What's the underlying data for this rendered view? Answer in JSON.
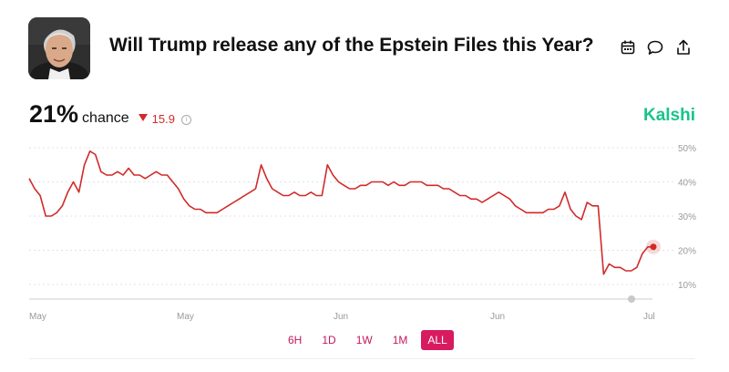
{
  "market": {
    "title": "Will Trump release any of the Epstein Files this Year?"
  },
  "odds": {
    "percent": "21%",
    "label": "chance",
    "delta": "15.9",
    "delta_direction": "down"
  },
  "brand": {
    "name": "Kalshi",
    "color": "#18c38b"
  },
  "header_icons": [
    "calendar-icon",
    "comment-icon",
    "share-icon"
  ],
  "range_tabs": [
    {
      "label": "6H",
      "active": false
    },
    {
      "label": "1D",
      "active": false
    },
    {
      "label": "1W",
      "active": false
    },
    {
      "label": "1M",
      "active": false
    },
    {
      "label": "ALL",
      "active": true
    }
  ],
  "chart_data": {
    "type": "line",
    "ylim": [
      10,
      50
    ],
    "yticks": [
      "50%",
      "40%",
      "30%",
      "20%",
      "10%"
    ],
    "xticks": [
      "May",
      "May",
      "Jun",
      "Jun",
      "Jul"
    ],
    "grid": true,
    "line_color": "#d12a2a",
    "series": [
      {
        "values": [
          41,
          38,
          36,
          30,
          30,
          31,
          33,
          37,
          40,
          37,
          45,
          49,
          48,
          43,
          42,
          42,
          43,
          42,
          44,
          42,
          42,
          41,
          42,
          43,
          42,
          42,
          40,
          38,
          35,
          33,
          32,
          32,
          31,
          31,
          31,
          32,
          33,
          34,
          35,
          36,
          37,
          38,
          45,
          41,
          38,
          37,
          36,
          36,
          37,
          36,
          36,
          37,
          36,
          36,
          45,
          42,
          40,
          39,
          38,
          38,
          39,
          39,
          40,
          40,
          40,
          39,
          40,
          39,
          39,
          40,
          40,
          40,
          39,
          39,
          39,
          38,
          38,
          37,
          36,
          36,
          35,
          35,
          34,
          35,
          36,
          37,
          36,
          35,
          33,
          32,
          31,
          31,
          31,
          31,
          32,
          32,
          33,
          37,
          32,
          30,
          29,
          34,
          33,
          33,
          13,
          16,
          15,
          15,
          14,
          14,
          15,
          19,
          21,
          21
        ]
      }
    ]
  }
}
